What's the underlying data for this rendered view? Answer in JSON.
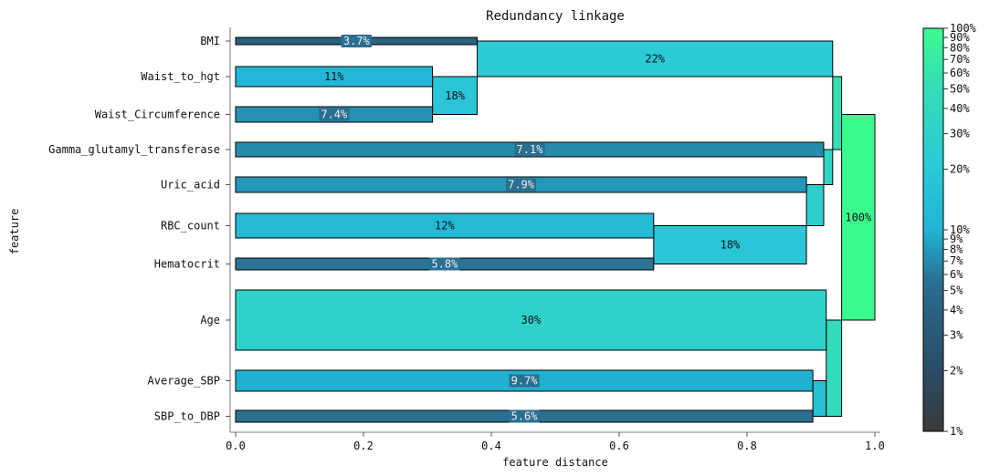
{
  "chart_data": {
    "type": "bar",
    "title": "Redundancy linkage",
    "xlabel": "feature distance",
    "ylabel": "feature",
    "xlim": [
      0,
      1
    ],
    "x_ticks": [
      "0.0",
      "0.2",
      "0.4",
      "0.6",
      "0.8",
      "1.0"
    ],
    "grid": false,
    "legend": "none",
    "features": [
      {
        "name": "BMI",
        "distance": 0.378,
        "label": "3.7%",
        "importance": 3.7
      },
      {
        "name": "Waist_to_hgt",
        "distance": 0.308,
        "label": "11%",
        "importance": 11
      },
      {
        "name": "Waist_Circumference",
        "distance": 0.308,
        "label": "7.4%",
        "importance": 7.4
      },
      {
        "name": "Gamma_glutamyl_transferase",
        "distance": 0.92,
        "label": "7.1%",
        "importance": 7.1
      },
      {
        "name": "Uric_acid",
        "distance": 0.893,
        "label": "7.9%",
        "importance": 7.9
      },
      {
        "name": "RBC_count",
        "distance": 0.654,
        "label": "12%",
        "importance": 12
      },
      {
        "name": "Hematocrit",
        "distance": 0.654,
        "label": "5.8%",
        "importance": 5.8
      },
      {
        "name": "Age",
        "distance": 0.924,
        "label": "30%",
        "importance": 30
      },
      {
        "name": "Average_SBP",
        "distance": 0.903,
        "label": "9.7%",
        "importance": 9.7
      },
      {
        "name": "SBP_to_DBP",
        "distance": 0.903,
        "label": "5.6%",
        "importance": 5.6
      }
    ],
    "clusters": [
      {
        "from": 0.308,
        "to": 0.378,
        "span": [
          "Waist_to_hgt",
          "Waist_Circumference"
        ],
        "label": "18%",
        "importance": 18
      },
      {
        "from": 0.378,
        "to": 0.934,
        "span": [
          "BMI",
          "Waist_to_hgt"
        ],
        "label": "22%",
        "importance": 22
      },
      {
        "from": 0.654,
        "to": 0.893,
        "span": [
          "RBC_count",
          "Hematocrit"
        ],
        "label": "18%",
        "importance": 18
      },
      {
        "from": 0.893,
        "to": 0.92,
        "span": [
          "Uric_acid",
          "RBC_count"
        ],
        "label": "",
        "importance": 26
      },
      {
        "from": 0.92,
        "to": 0.934,
        "span": [
          "Gamma_glutamyl_transferase",
          "Uric_acid"
        ],
        "label": "",
        "importance": 33
      },
      {
        "from": 0.934,
        "to": 0.948,
        "span": [
          "Waist_to_hgt",
          "Gamma_glutamyl_transferase"
        ],
        "label": "",
        "importance": 55
      },
      {
        "from": 0.903,
        "to": 0.924,
        "span": [
          "Average_SBP",
          "SBP_to_DBP"
        ],
        "label": "",
        "importance": 15
      },
      {
        "from": 0.924,
        "to": 0.948,
        "span": [
          "Age",
          "SBP_to_DBP"
        ],
        "label": "",
        "importance": 45
      },
      {
        "from": 0.948,
        "to": 1.0,
        "span": [
          "Waist_Circumference",
          "Age"
        ],
        "label": "100%",
        "importance": 100
      }
    ],
    "colorbar": {
      "scale": "log",
      "range": [
        1,
        100
      ],
      "ticks": [
        "1%",
        "2%",
        "3%",
        "4%",
        "5%",
        "6%",
        "7%",
        "8%",
        "9%",
        "10%",
        "20%",
        "30%",
        "40%",
        "50%",
        "60%",
        "70%",
        "80%",
        "90%",
        "100%"
      ]
    }
  }
}
